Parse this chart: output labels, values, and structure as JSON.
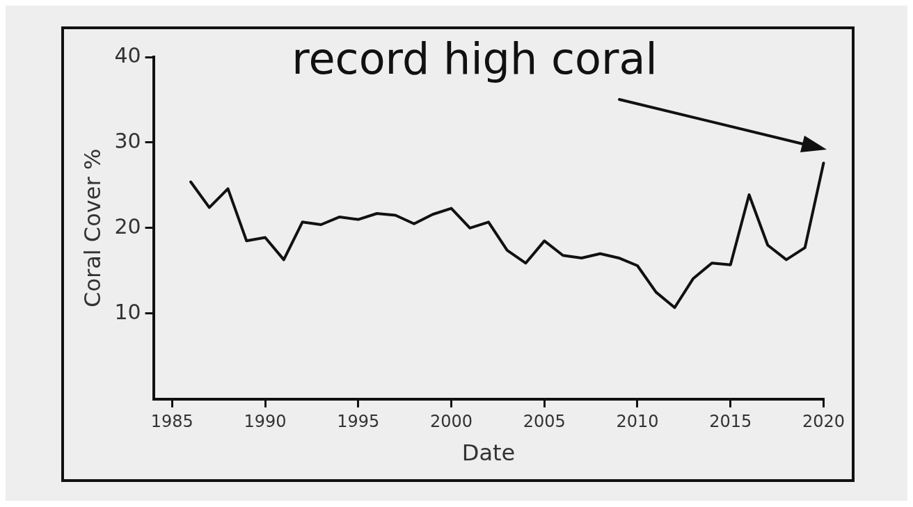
{
  "chart_data": {
    "type": "line",
    "xlabel": "Date",
    "ylabel": "Coral Cover %",
    "x": [
      1986,
      1987,
      1988,
      1989,
      1990,
      1991,
      1992,
      1993,
      1994,
      1995,
      1996,
      1997,
      1998,
      1999,
      2000,
      2001,
      2002,
      2003,
      2004,
      2005,
      2006,
      2007,
      2008,
      2009,
      2010,
      2011,
      2012,
      2013,
      2014,
      2015,
      2016,
      2017,
      2018,
      2019,
      2020
    ],
    "series": [
      {
        "color": "#111111",
        "values": [
          25.4,
          22.4,
          24.6,
          18.5,
          18.9,
          16.3,
          20.7,
          20.4,
          21.3,
          21.0,
          21.7,
          21.5,
          20.5,
          21.6,
          22.3,
          20.0,
          20.7,
          17.4,
          15.9,
          18.5,
          16.8,
          16.5,
          17.0,
          16.5,
          15.6,
          12.5,
          10.7,
          14.1,
          15.9,
          15.7,
          23.9,
          18.0,
          16.3,
          17.7,
          27.6
        ]
      }
    ],
    "xlim": [
      1984,
      2020
    ],
    "xticks": [
      1985,
      1990,
      1995,
      2000,
      2005,
      2010,
      2015,
      2020
    ],
    "ylim": [
      0,
      40
    ],
    "yticks": [
      10,
      20,
      30,
      40
    ],
    "annotations": [
      "record high coral"
    ],
    "grid": false,
    "legend": false,
    "marker": "none",
    "line_style": "solid"
  }
}
